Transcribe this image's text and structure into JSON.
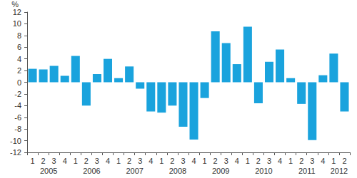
{
  "chart_data": {
    "type": "bar",
    "y_label": "%",
    "categories": [
      "1",
      "2",
      "3",
      "4",
      "1",
      "2",
      "3",
      "4",
      "1",
      "2",
      "3",
      "4",
      "1",
      "2",
      "3",
      "4",
      "1",
      "2",
      "3",
      "4",
      "1",
      "2",
      "3",
      "4",
      "1",
      "2",
      "3",
      "4",
      "1",
      "2"
    ],
    "years": [
      "2005",
      "2005",
      "2005",
      "2005",
      "2006",
      "2006",
      "2006",
      "2006",
      "2007",
      "2007",
      "2007",
      "2007",
      "2008",
      "2008",
      "2008",
      "2008",
      "2009",
      "2009",
      "2009",
      "2009",
      "2010",
      "2010",
      "2010",
      "2010",
      "2011",
      "2011",
      "2011",
      "2011",
      "2012",
      "2012"
    ],
    "values": [
      2.3,
      2.2,
      2.8,
      1.1,
      4.5,
      -4.0,
      1.4,
      4.0,
      0.7,
      2.7,
      -1.1,
      -5.0,
      -5.2,
      -4.0,
      -7.6,
      -9.8,
      -2.7,
      8.7,
      6.7,
      3.1,
      9.5,
      -3.6,
      3.5,
      5.6,
      0.7,
      -3.7,
      -9.9,
      1.2,
      4.9,
      -5.0
    ],
    "color": "#1aa3dd",
    "ylim": [
      -12,
      12
    ],
    "yticks": [
      -12,
      -10,
      -8,
      -6,
      -4,
      -2,
      0,
      2,
      4,
      6,
      8,
      10,
      12
    ],
    "grid": false
  }
}
